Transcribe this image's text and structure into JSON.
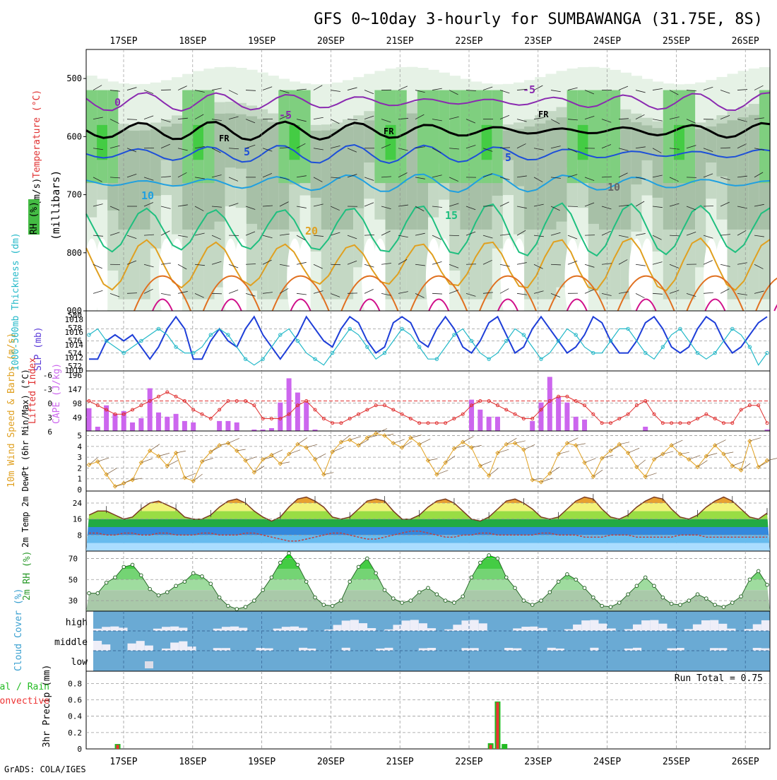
{
  "title": "GFS 0~10day 3-hourly for SUMBAWANGA (31.75E, 8S)",
  "credit": "GrADS: COLA/IGES",
  "dates": [
    "17SEP",
    "18SEP",
    "19SEP",
    "20SEP",
    "21SEP",
    "22SEP",
    "23SEP",
    "24SEP",
    "25SEP",
    "26SEP"
  ],
  "chart_data": [
    {
      "panel": "upper-air",
      "type": "heatmap",
      "ylabel": "(millibars)",
      "legend_labels": {
        "rh": "RH (%)",
        "temp": "Temperature (°C)",
        "wind": "Wind (m/s)"
      },
      "yticks": [
        500,
        600,
        700,
        800,
        900
      ],
      "ylim": [
        450,
        900
      ],
      "contour_labels": [
        "0",
        "-5",
        "-5",
        "FR",
        "FR",
        "FR",
        "5",
        "5",
        "10",
        "15",
        "20",
        "10"
      ],
      "isotherms": [
        {
          "label": "-5",
          "pressure": 540
        },
        {
          "label": "FR",
          "pressure": 590
        },
        {
          "label": "5",
          "pressure": 630
        },
        {
          "label": "10",
          "pressure": 680
        },
        {
          "label": "15",
          "pressure": 760
        },
        {
          "label": "20",
          "pressure": 820
        }
      ]
    },
    {
      "panel": "thickness-slp",
      "type": "line",
      "ylabel_left": "1000-500mb Thickness (dm)",
      "ylabel_right": "SLP (mb)",
      "left_ticks": [
        "580",
        "578",
        "576",
        "574",
        "572"
      ],
      "right_ticks": [
        "1018",
        "1016",
        "1014",
        "1012",
        "1010"
      ],
      "series": [
        {
          "name": "SLP (mb)",
          "color": "#1e3ed8",
          "values": [
            1011,
            1011,
            1014,
            1015,
            1014,
            1015,
            1013,
            1011,
            1013,
            1016,
            1018,
            1016,
            1011,
            1011,
            1014,
            1016,
            1014,
            1013,
            1016,
            1018,
            1015,
            1013,
            1011,
            1013,
            1015,
            1018,
            1016,
            1014,
            1013,
            1016,
            1018,
            1017,
            1014,
            1012,
            1013,
            1017,
            1018,
            1017,
            1014,
            1013,
            1016,
            1018,
            1016,
            1013,
            1012,
            1014,
            1017,
            1018,
            1015,
            1012,
            1013,
            1016,
            1018,
            1016,
            1014,
            1012,
            1013,
            1015,
            1018,
            1017,
            1014,
            1012,
            1012,
            1014,
            1017,
            1018,
            1016,
            1013,
            1012,
            1013,
            1016,
            1018,
            1017,
            1014,
            1012,
            1013,
            1015,
            1017,
            1018
          ]
        },
        {
          "name": "Thickness (dm)",
          "color": "#22b8c8",
          "values": [
            577,
            578,
            576,
            575,
            574,
            575,
            576,
            577,
            578,
            577,
            575,
            574,
            574,
            575,
            577,
            578,
            577,
            575,
            573,
            572,
            573,
            575,
            577,
            578,
            576,
            574,
            573,
            572,
            574,
            576,
            578,
            577,
            575,
            573,
            574,
            576,
            578,
            577,
            575,
            573,
            573,
            575,
            577,
            578,
            576,
            574,
            573,
            574,
            576,
            578,
            577,
            575,
            573,
            574,
            576,
            578,
            577,
            575,
            574,
            574,
            576,
            578,
            578,
            576,
            574,
            573,
            575,
            577,
            578,
            576,
            574,
            573,
            574,
            576,
            578,
            577,
            575,
            572,
            574
          ]
        }
      ]
    },
    {
      "panel": "instability",
      "type": "bar",
      "ylabel_left": "Lifted Index",
      "ylabel_right": "CAPE (J/kg)",
      "left_ticks": [
        "-6",
        "-3",
        "0",
        "3",
        "6"
      ],
      "right_ticks": [
        "196",
        "147",
        "98",
        "49",
        ""
      ],
      "series": [
        {
          "name": "CAPE (J/kg)",
          "color": "#cc66ee",
          "values": [
            80,
            15,
            90,
            60,
            70,
            30,
            45,
            150,
            65,
            50,
            60,
            35,
            30,
            0,
            0,
            35,
            35,
            30,
            0,
            5,
            5,
            10,
            100,
            185,
            135,
            100,
            5,
            0,
            0,
            0,
            0,
            0,
            0,
            0,
            0,
            0,
            0,
            0,
            0,
            0,
            0,
            0,
            0,
            0,
            110,
            75,
            50,
            50,
            0,
            0,
            0,
            35,
            100,
            190,
            120,
            100,
            50,
            40,
            0,
            0,
            0,
            0,
            0,
            0,
            15,
            0,
            0,
            0,
            0,
            0,
            0,
            0,
            0,
            0,
            0,
            0,
            0,
            0,
            5
          ]
        },
        {
          "name": "Lifted Index",
          "color": "#e03030",
          "values": [
            0,
            1,
            2,
            3,
            3,
            2,
            1,
            0,
            -1,
            -2,
            -1,
            0,
            2,
            3,
            4,
            2,
            0,
            0,
            0,
            1,
            4,
            4,
            4,
            3,
            1,
            0,
            2,
            4,
            5,
            5,
            4,
            3,
            2,
            1,
            1,
            2,
            3,
            4,
            5,
            5,
            5,
            5,
            4,
            3,
            1,
            0,
            0,
            1,
            2,
            3,
            4,
            4,
            2,
            0,
            -1,
            -1,
            0,
            1,
            3,
            5,
            5,
            4,
            3,
            1,
            0,
            3,
            5,
            5,
            5,
            5,
            4,
            3,
            4,
            5,
            5,
            2,
            1,
            1,
            5
          ]
        }
      ]
    },
    {
      "panel": "wind10m",
      "type": "line",
      "ylabel": "10m Wind Speed & Barbs (m/s)",
      "yticks": [
        "5",
        "4",
        "3",
        "2",
        "1",
        "0"
      ],
      "ylim": [
        0,
        5
      ],
      "series": [
        {
          "name": "10m Wind Speed (m/s)",
          "color": "#e0a020",
          "values": [
            2.3,
            2.6,
            1.4,
            0.3,
            0.6,
            0.9,
            2.5,
            3.6,
            3.1,
            2.2,
            3.4,
            1.1,
            0.8,
            2.6,
            3.5,
            4.1,
            4.3,
            3.6,
            2.7,
            1.6,
            2.8,
            3.2,
            2.4,
            3.3,
            4.2,
            3.9,
            2.8,
            1.4,
            3.5,
            4.4,
            4.6,
            4.1,
            4.8,
            5.2,
            5.0,
            4.3,
            3.9,
            4.8,
            4.2,
            2.7,
            1.4,
            2.5,
            3.8,
            4.4,
            3.9,
            2.2,
            1.3,
            3.4,
            4.2,
            4.3,
            3.7,
            0.9,
            0.7,
            1.5,
            3.3,
            4.3,
            4.1,
            2.5,
            1.2,
            2.9,
            3.6,
            4.2,
            3.4,
            2.1,
            1.2,
            2.8,
            3.3,
            4.1,
            3.3,
            2.8,
            2.1,
            3.1,
            4.1,
            3.3,
            2.2,
            1.8,
            4.5,
            2.1,
            2.7
          ]
        }
      ]
    },
    {
      "panel": "temperature2m",
      "type": "area",
      "ylabel": "2m Temp 2m DewPt (6hr Min/Max) (°C)",
      "yticks": [
        "24",
        "16",
        "8"
      ],
      "ylim": [
        0,
        30
      ],
      "series": [
        {
          "name": "2m Temp (°C)",
          "color": "#7a3a20",
          "values": [
            18,
            20,
            20,
            18,
            16,
            17,
            21,
            24,
            25,
            23,
            21,
            17,
            16,
            16,
            18,
            22,
            25,
            26,
            24,
            20,
            17,
            15,
            17,
            22,
            26,
            27,
            25,
            22,
            17,
            16,
            17,
            21,
            25,
            26,
            25,
            20,
            16,
            16,
            18,
            22,
            25,
            26,
            24,
            20,
            16,
            15,
            17,
            21,
            25,
            26,
            24,
            21,
            17,
            16,
            17,
            21,
            25,
            27,
            26,
            21,
            17,
            16,
            18,
            22,
            25,
            27,
            26,
            21,
            17,
            16,
            18,
            22,
            25,
            27,
            25,
            21,
            17,
            16,
            19
          ]
        },
        {
          "name": "2m DewPt (°C)",
          "color": "#c04040",
          "values": [
            9,
            9,
            8,
            8,
            9,
            9,
            8,
            8,
            9,
            9,
            8,
            8,
            8,
            9,
            9,
            8,
            8,
            8,
            9,
            9,
            8,
            7,
            6,
            5,
            5,
            6,
            7,
            8,
            9,
            9,
            8,
            7,
            6,
            6,
            7,
            8,
            9,
            10,
            10,
            9,
            8,
            7,
            7,
            8,
            8,
            9,
            9,
            8,
            8,
            8,
            8,
            8,
            9,
            9,
            8,
            8,
            8,
            7,
            7,
            7,
            8,
            8,
            8,
            7,
            7,
            7,
            7,
            7,
            8,
            8,
            8,
            7,
            7,
            7,
            7,
            7,
            7,
            7,
            7
          ]
        }
      ]
    },
    {
      "panel": "rh2m",
      "type": "area",
      "ylabel": "2m RH (%)",
      "yticks": [
        "70",
        "50",
        "30"
      ],
      "ylim": [
        20,
        75
      ],
      "series": [
        {
          "name": "2m RH (%)",
          "color": "#2a9a2a",
          "values": [
            37,
            37,
            47,
            52,
            62,
            64,
            54,
            41,
            35,
            38,
            44,
            48,
            56,
            53,
            46,
            33,
            25,
            22,
            24,
            30,
            40,
            52,
            66,
            75,
            64,
            48,
            33,
            26,
            25,
            30,
            48,
            62,
            70,
            56,
            40,
            32,
            28,
            30,
            38,
            42,
            36,
            30,
            28,
            34,
            52,
            66,
            73,
            70,
            52,
            42,
            30,
            26,
            30,
            38,
            48,
            55,
            50,
            42,
            33,
            25,
            24,
            28,
            36,
            44,
            52,
            44,
            33,
            27,
            26,
            30,
            36,
            32,
            26,
            24,
            28,
            34,
            50,
            58,
            45
          ]
        }
      ]
    },
    {
      "panel": "cloud-cover",
      "type": "heatmap",
      "ylabel": "Cloud Cover (%)",
      "yticks": [
        "high",
        "middle",
        "low"
      ],
      "layers": [
        "high",
        "middle",
        "low"
      ]
    },
    {
      "panel": "precipitation",
      "type": "bar",
      "ylabel": "3hr Precip (mm)",
      "legend": [
        "Total / Rain",
        "Convective"
      ],
      "yticks": [
        "0.8",
        "0.6",
        "0.4",
        "0.2",
        "0"
      ],
      "ylim": [
        0,
        0.95
      ],
      "annotation": "Run Total = 0.75",
      "series": [
        {
          "name": "Total",
          "color": "#22bb22",
          "values": [
            {
              "x": 0.2,
              "v": 0.06
            },
            {
              "x": 5.6,
              "v": 0.07
            },
            {
              "x": 5.7,
              "v": 0.58
            },
            {
              "x": 5.8,
              "v": 0.06
            }
          ]
        },
        {
          "name": "Convective",
          "color": "#ee3333",
          "values": [
            {
              "x": 0.2,
              "v": 0.05
            },
            {
              "x": 5.6,
              "v": 0.05
            },
            {
              "x": 5.7,
              "v": 0.57
            },
            {
              "x": 5.8,
              "v": 0.0
            }
          ]
        }
      ]
    }
  ]
}
